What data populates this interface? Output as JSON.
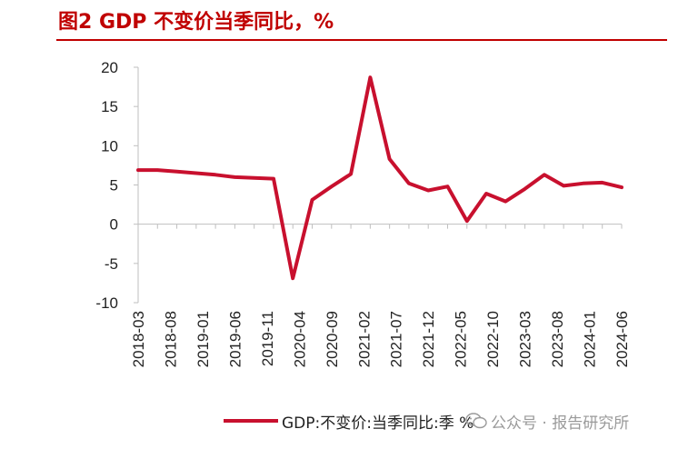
{
  "figure": {
    "title": "图2  GDP 不变价当季同比，%",
    "title_color": "#c00000"
  },
  "legend": {
    "label": "GDP:不变价:当季同比:季 %"
  },
  "watermark": {
    "text": "公众号 · 报告研究所",
    "icon": "wechat-icon"
  },
  "chart_data": {
    "type": "line",
    "title": "",
    "xlabel": "",
    "ylabel": "",
    "ylim": [
      -10,
      20
    ],
    "yticks": [
      -10,
      -5,
      0,
      5,
      10,
      15,
      20
    ],
    "grid": false,
    "legend_position": "bottom",
    "x": [
      "2018-03",
      "2018-06",
      "2018-09",
      "2018-12",
      "2019-03",
      "2019-06",
      "2019-09",
      "2019-12",
      "2020-03",
      "2020-06",
      "2020-09",
      "2020-12",
      "2021-03",
      "2021-06",
      "2021-09",
      "2021-12",
      "2022-03",
      "2022-06",
      "2022-09",
      "2022-12",
      "2023-03",
      "2023-06",
      "2023-09",
      "2023-12",
      "2024-03",
      "2024-06"
    ],
    "xtick_labels": [
      "2018-03",
      "2018-08",
      "2019-01",
      "2019-06",
      "2019-11",
      "2020-04",
      "2020-09",
      "2021-02",
      "2021-07",
      "2021-12",
      "2022-05",
      "2022-10",
      "2023-03",
      "2023-08",
      "2024-01",
      "2024-06"
    ],
    "series": [
      {
        "name": "GDP:不变价:当季同比:季 %",
        "color": "#c8102e",
        "values": [
          6.9,
          6.9,
          6.7,
          6.5,
          6.3,
          6.0,
          5.9,
          5.8,
          -6.9,
          3.1,
          4.8,
          6.4,
          18.7,
          8.3,
          5.2,
          4.3,
          4.8,
          0.4,
          3.9,
          2.9,
          4.5,
          6.3,
          4.9,
          5.2,
          5.3,
          4.7
        ]
      }
    ]
  }
}
